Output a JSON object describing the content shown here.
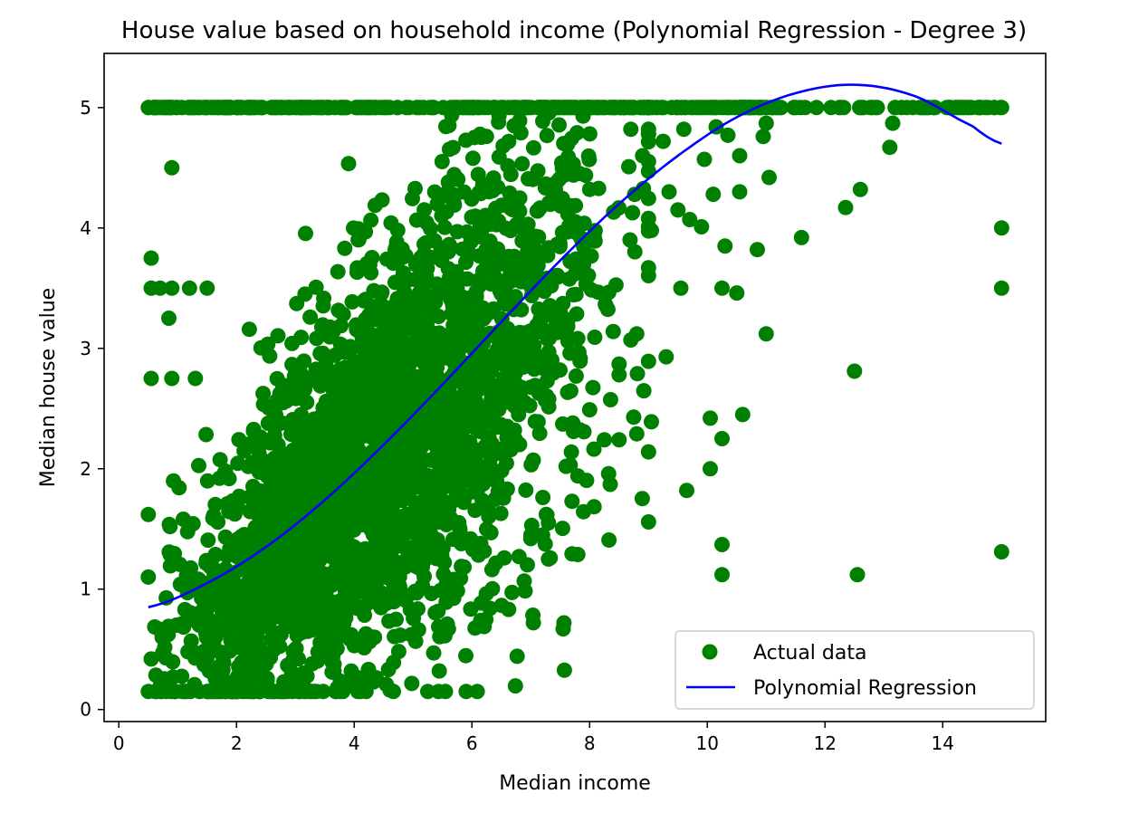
{
  "chart_data": {
    "type": "scatter",
    "title": "House value based on household income (Polynomial Regression - Degree 3)",
    "xlabel": "Median income",
    "ylabel": "Median house value",
    "xlim": [
      -0.25,
      15.75
    ],
    "ylim": [
      -0.1,
      5.45
    ],
    "xticks": [
      0,
      2,
      4,
      6,
      8,
      10,
      12,
      14
    ],
    "yticks": [
      0,
      1,
      2,
      3,
      4,
      5
    ],
    "grid": false,
    "legend_position": "lower-right",
    "colors": {
      "scatter": "#008000",
      "line": "#0000ff",
      "legend_border": "#cccccc"
    },
    "series": [
      {
        "name": "Actual data",
        "kind": "scatter",
        "description_note": "dense cloud of ~20000 points; representative sampled outliers listed",
        "cloud": {
          "x_range": [
            0.5,
            15.0
          ],
          "y_range": [
            0.15,
            5.0
          ],
          "cap_value": 5.0,
          "core_x_range": [
            1.5,
            8.5
          ]
        },
        "points": [
          [
            0.5,
            5.0
          ],
          [
            0.75,
            5.0
          ],
          [
            0.9,
            5.0
          ],
          [
            1.2,
            5.0
          ],
          [
            1.3,
            5.0
          ],
          [
            1.7,
            5.0
          ],
          [
            2.0,
            5.0
          ],
          [
            0.55,
            3.75
          ],
          [
            0.55,
            3.5
          ],
          [
            0.7,
            3.5
          ],
          [
            0.9,
            3.5
          ],
          [
            1.2,
            3.5
          ],
          [
            1.5,
            3.5
          ],
          [
            0.55,
            2.75
          ],
          [
            0.9,
            2.75
          ],
          [
            1.3,
            2.75
          ],
          [
            0.85,
            3.25
          ],
          [
            0.9,
            4.5
          ],
          [
            0.5,
            1.62
          ],
          [
            0.5,
            0.15
          ],
          [
            0.55,
            0.42
          ],
          [
            0.5,
            1.1
          ],
          [
            1.7,
            0.15
          ],
          [
            2.1,
            0.15
          ],
          [
            4.2,
            0.15
          ],
          [
            3.95,
            0.32
          ],
          [
            4.0,
            0.53
          ],
          [
            5.35,
            0.47
          ],
          [
            5.6,
            0.67
          ],
          [
            6.15,
            0.74
          ],
          [
            7.55,
            0.67
          ],
          [
            9.65,
            1.82
          ],
          [
            9.0,
            2.14
          ],
          [
            9.05,
            2.39
          ],
          [
            10.05,
            2.0
          ],
          [
            10.05,
            2.42
          ],
          [
            10.25,
            2.25
          ],
          [
            10.25,
            1.37
          ],
          [
            10.25,
            1.12
          ],
          [
            10.6,
            2.45
          ],
          [
            11.0,
            3.12
          ],
          [
            10.5,
            3.46
          ],
          [
            10.25,
            3.5
          ],
          [
            9.3,
            2.93
          ],
          [
            8.8,
            3.12
          ],
          [
            9.55,
            3.5
          ],
          [
            10.85,
            3.82
          ],
          [
            11.6,
            3.92
          ],
          [
            12.35,
            4.17
          ],
          [
            12.6,
            4.32
          ],
          [
            11.05,
            4.42
          ],
          [
            12.5,
            2.81
          ],
          [
            12.55,
            1.12
          ],
          [
            13.1,
            4.67
          ],
          [
            13.15,
            4.87
          ],
          [
            15.0,
            4.0
          ],
          [
            15.0,
            3.5
          ],
          [
            15.0,
            1.31
          ],
          [
            15.0,
            5.0
          ],
          [
            14.6,
            5.0
          ],
          [
            14.3,
            5.0
          ],
          [
            10.55,
            4.3
          ],
          [
            10.1,
            4.28
          ],
          [
            9.7,
            4.07
          ],
          [
            9.5,
            4.15
          ],
          [
            9.9,
            4.01
          ],
          [
            10.3,
            3.85
          ],
          [
            8.5,
            2.24
          ],
          [
            8.8,
            2.29
          ],
          [
            8.35,
            1.87
          ],
          [
            8.25,
            2.24
          ],
          [
            7.6,
            2.02
          ],
          [
            7.3,
            1.55
          ],
          [
            7.3,
            1.25
          ],
          [
            6.8,
            1.27
          ],
          [
            7.0,
            1.42
          ],
          [
            7.7,
            1.73
          ],
          [
            7.8,
            1.94
          ],
          [
            8.0,
            2.49
          ],
          [
            8.5,
            2.78
          ],
          [
            8.5,
            2.87
          ],
          [
            8.4,
            3.14
          ],
          [
            8.7,
            3.07
          ],
          [
            9.0,
            3.67
          ],
          [
            9.05,
            3.98
          ],
          [
            8.9,
            4.6
          ],
          [
            8.7,
            4.82
          ],
          [
            9.6,
            4.82
          ],
          [
            9.25,
            4.72
          ],
          [
            9.35,
            4.3
          ],
          [
            10.15,
            4.84
          ],
          [
            9.95,
            4.57
          ],
          [
            10.55,
            4.6
          ],
          [
            10.35,
            4.77
          ],
          [
            10.95,
            4.76
          ],
          [
            11.0,
            4.87
          ]
        ]
      },
      {
        "name": "Polynomial Regression",
        "kind": "line",
        "poly_coeffs_desc": "cubic fit in median income",
        "x": [
          0.5,
          1.5,
          2.5,
          3.5,
          4.5,
          5.5,
          6.5,
          7.5,
          8.5,
          9.5,
          10.5,
          11.5,
          12.5,
          13.5,
          14.5,
          15.0
        ],
        "y": [
          0.85,
          1.05,
          1.35,
          1.74,
          2.2,
          2.7,
          3.22,
          3.73,
          4.2,
          4.6,
          4.92,
          5.12,
          5.19,
          5.1,
          4.85,
          4.7
        ]
      }
    ]
  }
}
